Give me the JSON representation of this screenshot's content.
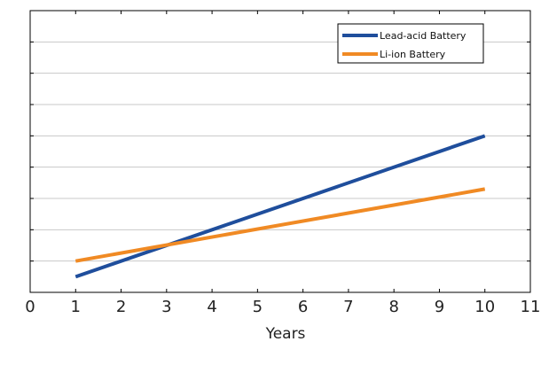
{
  "chart_data": {
    "type": "line",
    "title": "",
    "xlabel": "Years",
    "ylabel": "",
    "xlim": [
      0,
      11
    ],
    "ylim": [
      0,
      9
    ],
    "xticks": [
      0,
      1,
      2,
      3,
      4,
      5,
      6,
      7,
      8,
      9,
      10,
      11
    ],
    "xtick_labels": [
      "0",
      "1",
      "2",
      "3",
      "4",
      "5",
      "6",
      "7",
      "8",
      "9",
      "10",
      "11"
    ],
    "yticks": [
      0,
      1,
      2,
      3,
      4,
      5,
      6,
      7,
      8,
      9
    ],
    "ytick_labels_visible": false,
    "grid": "horizontal",
    "legend_position": "top-right",
    "series": [
      {
        "name": "Lead-acid Battery",
        "color": "#1f4e9c",
        "x": [
          1,
          10
        ],
        "y": [
          0.5,
          5.0
        ]
      },
      {
        "name": "Li-ion Battery",
        "color": "#f08a24",
        "x": [
          1,
          10
        ],
        "y": [
          1.0,
          3.3
        ]
      }
    ]
  }
}
